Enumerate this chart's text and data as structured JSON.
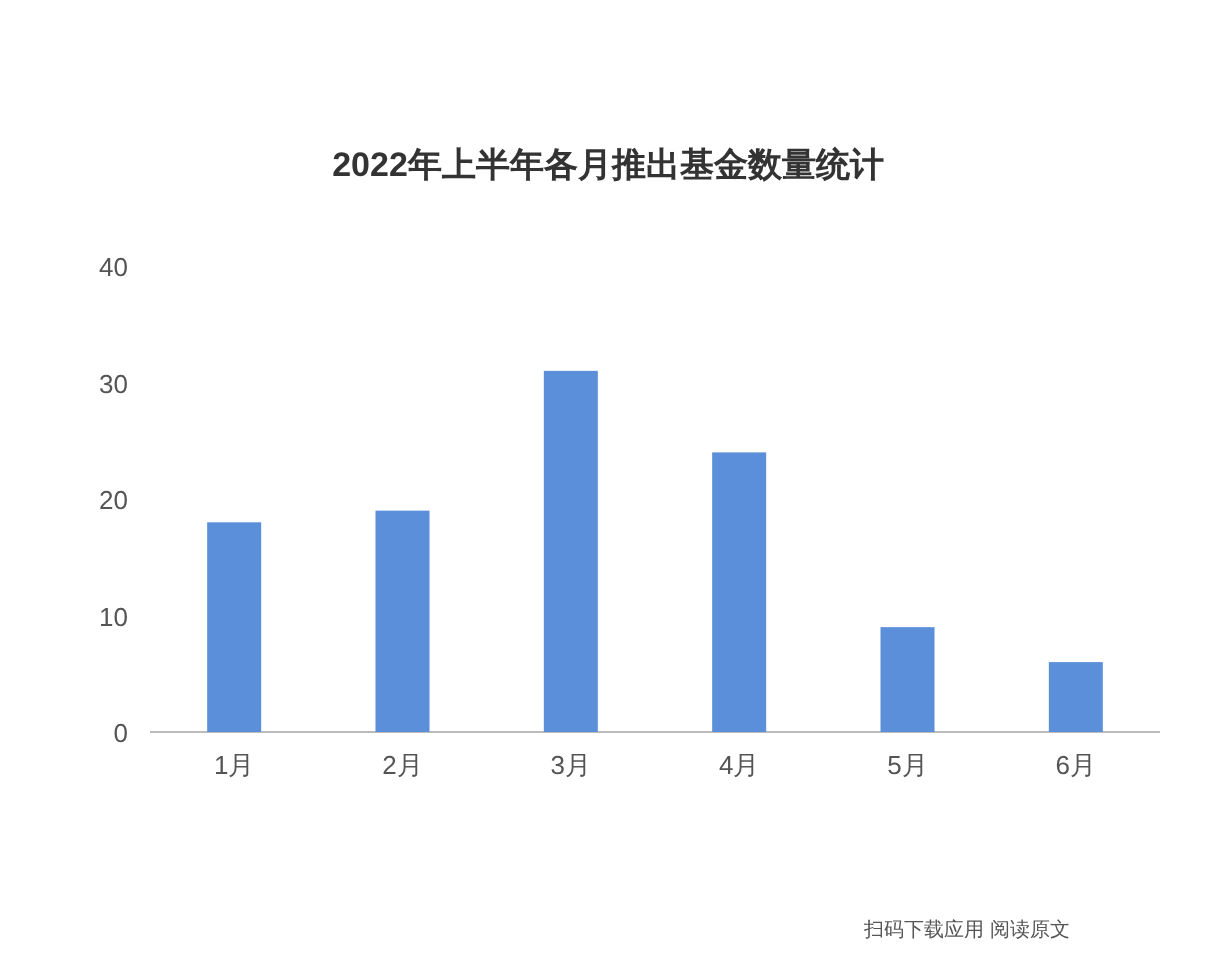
{
  "chart_data": {
    "type": "bar",
    "title": "2022年上半年各月推出基金数量统计",
    "categories": [
      "1月",
      "2月",
      "3月",
      "4月",
      "5月",
      "6月"
    ],
    "values": [
      18,
      19,
      31,
      24,
      9,
      6
    ],
    "color": "#5b8fd9",
    "ylim": [
      0,
      40
    ],
    "yticks": [
      0,
      10,
      20,
      30,
      40
    ],
    "annotations": [
      "扫码下载应用  阅读原文"
    ]
  }
}
